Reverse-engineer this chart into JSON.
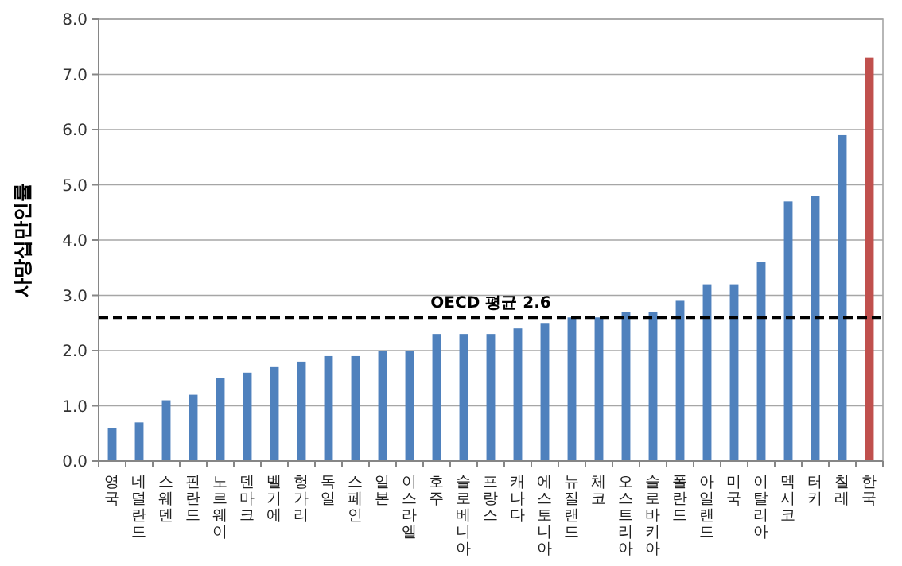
{
  "chart_data": {
    "type": "bar",
    "ylabel": "사망십만인률",
    "categories": [
      "영국",
      "네덜란드",
      "스웨덴",
      "핀란드",
      "노르웨이",
      "덴마크",
      "벨기에",
      "헝가리",
      "독일",
      "스페인",
      "일본",
      "이스라엘",
      "호주",
      "슬로베니아",
      "프랑스",
      "캐나다",
      "에스토니아",
      "뉴질랜드",
      "체코",
      "오스트리아",
      "슬로바키아",
      "폴란드",
      "아일랜드",
      "미국",
      "이탈리아",
      "멕시코",
      "터키",
      "칠레",
      "한국"
    ],
    "values": [
      0.6,
      0.7,
      1.1,
      1.2,
      1.5,
      1.6,
      1.7,
      1.8,
      1.9,
      1.9,
      2.0,
      2.0,
      2.3,
      2.3,
      2.3,
      2.4,
      2.5,
      2.6,
      2.6,
      2.7,
      2.7,
      2.9,
      3.2,
      3.2,
      3.6,
      4.7,
      4.8,
      5.9,
      7.3
    ],
    "colors": [
      "#4f81bd",
      "#4f81bd",
      "#4f81bd",
      "#4f81bd",
      "#4f81bd",
      "#4f81bd",
      "#4f81bd",
      "#4f81bd",
      "#4f81bd",
      "#4f81bd",
      "#4f81bd",
      "#4f81bd",
      "#4f81bd",
      "#4f81bd",
      "#4f81bd",
      "#4f81bd",
      "#4f81bd",
      "#4f81bd",
      "#4f81bd",
      "#4f81bd",
      "#4f81bd",
      "#4f81bd",
      "#4f81bd",
      "#4f81bd",
      "#4f81bd",
      "#4f81bd",
      "#4f81bd",
      "#4f81bd",
      "#c0504d"
    ],
    "ylim": [
      0,
      8
    ],
    "yticks": [
      {
        "value": 0,
        "label": "0.0"
      },
      {
        "value": 1,
        "label": "1.0"
      },
      {
        "value": 2,
        "label": "2.0"
      },
      {
        "value": 3,
        "label": "3.0"
      },
      {
        "value": 4,
        "label": "4.0"
      },
      {
        "value": 5,
        "label": "5.0"
      },
      {
        "value": 6,
        "label": "6.0"
      },
      {
        "value": 7,
        "label": "7.0"
      },
      {
        "value": 8,
        "label": "8.0"
      }
    ],
    "grid": "y",
    "ref_lines": [
      {
        "axis": "y",
        "value": 2.6,
        "label": "OECD 평균 2.6",
        "color": "#000000",
        "line_style": "dashed"
      }
    ]
  }
}
